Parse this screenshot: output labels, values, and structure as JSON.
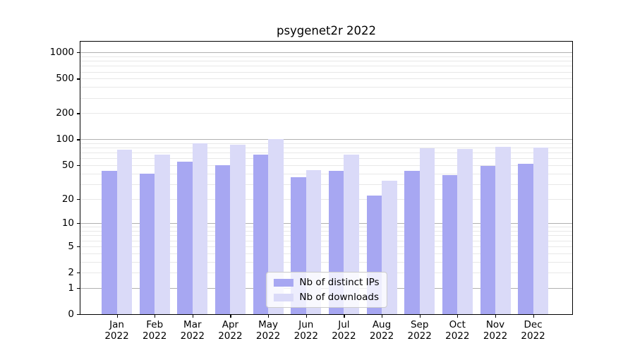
{
  "title": "psygenet2r 2022",
  "chart_data": {
    "type": "bar",
    "title": "psygenet2r 2022",
    "xlabel": "",
    "ylabel": "",
    "categories": [
      "Jan 2022",
      "Feb 2022",
      "Mar 2022",
      "Apr 2022",
      "May 2022",
      "Jun 2022",
      "Jul 2022",
      "Aug 2022",
      "Sep 2022",
      "Oct 2022",
      "Nov 2022",
      "Dec 2022"
    ],
    "series": [
      {
        "name": "Nb of distinct IPs",
        "color": "#a7a7f2",
        "values": [
          43,
          40,
          55,
          50,
          67,
          36,
          43,
          22,
          43,
          38,
          49,
          52
        ]
      },
      {
        "name": "Nb of downloads",
        "color": "#dadaf8",
        "values": [
          76,
          66,
          90,
          86,
          101,
          44,
          67,
          33,
          79,
          77,
          82,
          81
        ]
      }
    ],
    "yscale": "symlog (log1p)",
    "ylim": [
      0,
      1330
    ],
    "yticks": [
      0,
      1,
      2,
      5,
      10,
      20,
      50,
      100,
      200,
      500,
      1000
    ],
    "grid": "horizontal major+minor log gridlines",
    "legend_position": "lower center"
  },
  "x_axis": {
    "months": [
      "Jan",
      "Feb",
      "Mar",
      "Apr",
      "May",
      "Jun",
      "Jul",
      "Aug",
      "Sep",
      "Oct",
      "Nov",
      "Dec"
    ],
    "year": "2022"
  },
  "y_axis": {
    "tick_labels": [
      "0",
      "1",
      "2",
      "5",
      "10",
      "20",
      "50",
      "100",
      "200",
      "500",
      "1000"
    ]
  },
  "legend": {
    "items": [
      {
        "label": "Nb of distinct IPs",
        "color": "#a7a7f2"
      },
      {
        "label": "Nb of downloads",
        "color": "#dadaf8"
      }
    ]
  },
  "colors": {
    "major_grid": "#b1b1b1",
    "minor_grid": "#e8e8e8",
    "axis": "#000000",
    "background": "#ffffff"
  }
}
